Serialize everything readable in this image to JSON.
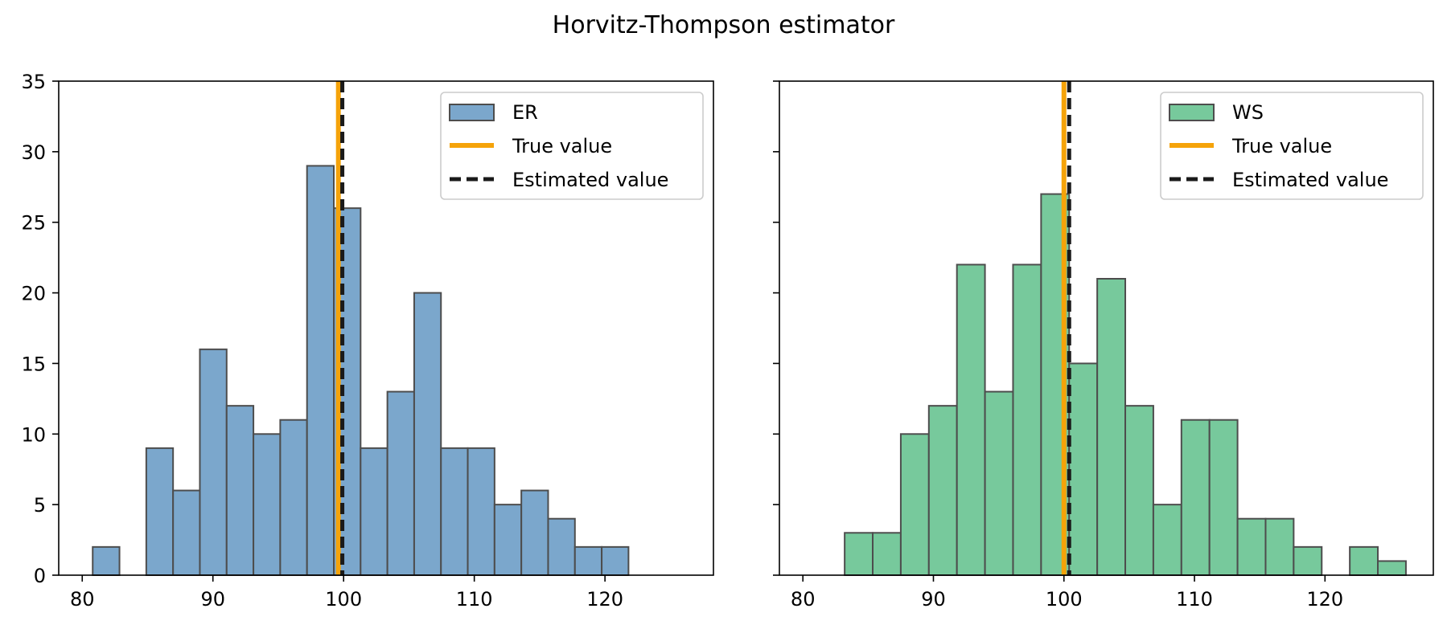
{
  "title": "Horvitz-Thompson estimator",
  "chart_data": [
    {
      "type": "bar",
      "subtype": "histogram",
      "panel": "left",
      "title": "",
      "xlabel": "",
      "ylabel": "",
      "xlim": [
        78.2,
        128.3
      ],
      "ylim": [
        0,
        35
      ],
      "xticks": [
        80,
        90,
        100,
        110,
        120
      ],
      "yticks": [
        0,
        5,
        10,
        15,
        20,
        25,
        30,
        35
      ],
      "bin_edges": [
        80.8,
        82.85,
        84.9,
        86.95,
        89.0,
        91.05,
        93.1,
        95.15,
        97.2,
        99.25,
        101.3,
        103.35,
        105.4,
        107.45,
        109.5,
        111.55,
        113.6,
        115.65,
        117.7,
        119.75,
        121.8
      ],
      "counts": [
        2,
        0,
        9,
        6,
        16,
        12,
        10,
        11,
        29,
        26,
        9,
        13,
        20,
        9,
        9,
        5,
        6,
        4,
        2,
        2
      ],
      "bar_color": "#7ba7cc",
      "edge_color": "#4d4d4d",
      "true_value": 99.6,
      "estimated_value": 99.9,
      "true_color": "#f5a30a",
      "estimated_color": "#1a1a1a",
      "legend_position": "top-right",
      "legend": [
        "ER",
        "True value",
        "Estimated value"
      ]
    },
    {
      "type": "bar",
      "subtype": "histogram",
      "panel": "right",
      "title": "",
      "xlabel": "",
      "ylabel": "",
      "xlim": [
        78.2,
        128.3
      ],
      "ylim": [
        0,
        35
      ],
      "xticks": [
        80,
        90,
        100,
        110,
        120
      ],
      "yticks": [
        0,
        5,
        10,
        15,
        20,
        25,
        30,
        35
      ],
      "bin_edges": [
        83.2,
        85.35,
        87.5,
        89.65,
        91.8,
        93.95,
        96.1,
        98.25,
        100.4,
        102.55,
        104.7,
        106.85,
        109.0,
        111.15,
        113.3,
        115.45,
        117.6,
        119.75,
        121.9,
        124.05,
        126.2
      ],
      "counts": [
        3,
        3,
        10,
        12,
        22,
        13,
        22,
        27,
        15,
        21,
        12,
        5,
        11,
        11,
        4,
        4,
        2,
        0,
        2,
        1
      ],
      "bar_color": "#77c99c",
      "edge_color": "#4d4d4d",
      "true_value": 100.0,
      "estimated_value": 100.4,
      "true_color": "#f5a30a",
      "estimated_color": "#1a1a1a",
      "legend_position": "top-right",
      "legend": [
        "WS",
        "True value",
        "Estimated value"
      ]
    }
  ]
}
